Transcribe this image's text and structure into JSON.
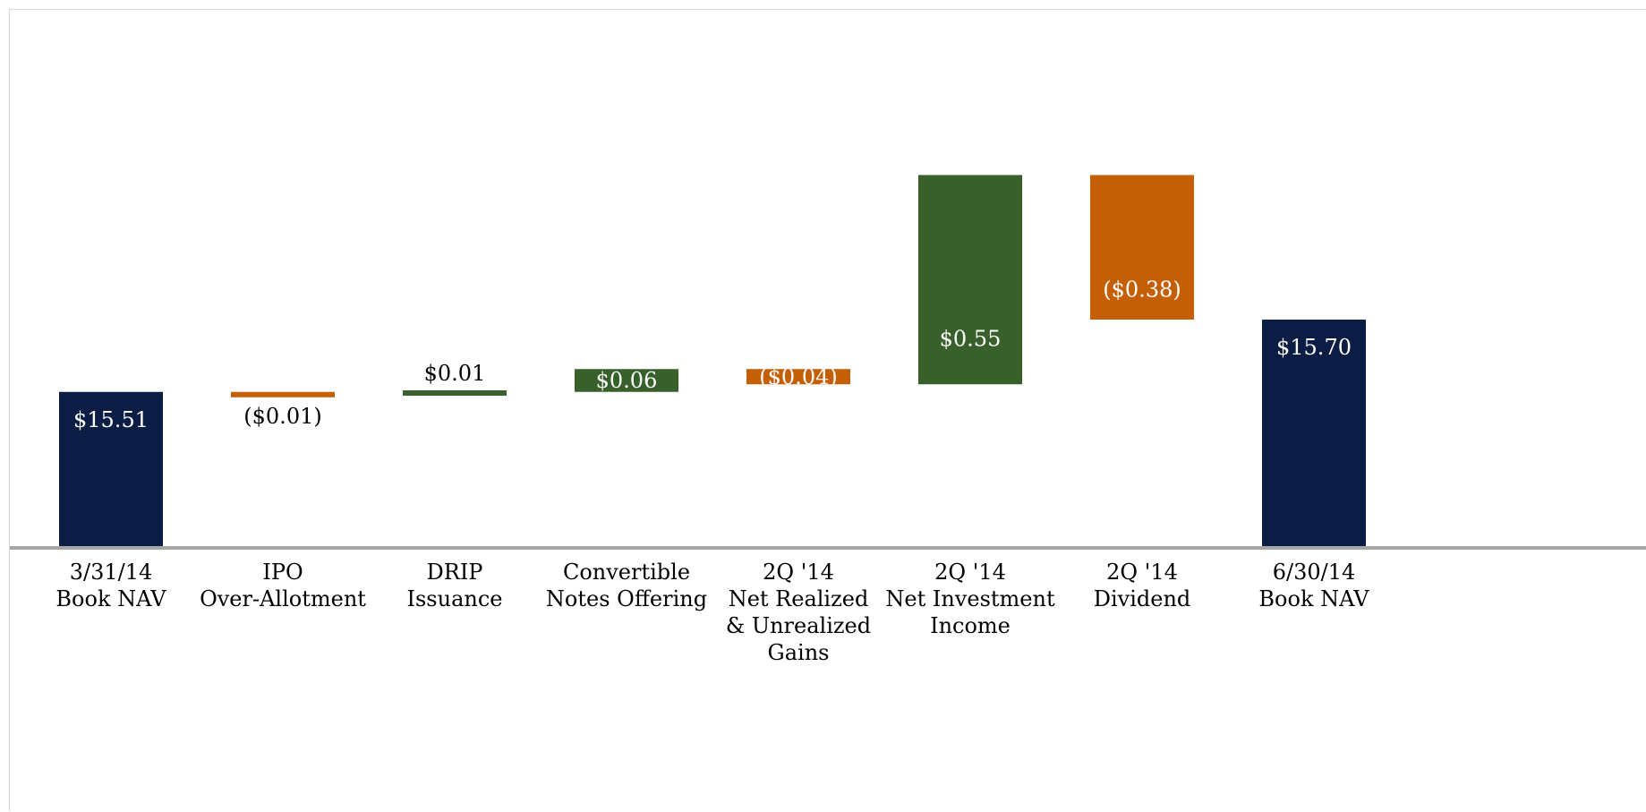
{
  "chart_data": {
    "type": "bar",
    "subtype": "waterfall",
    "categories": [
      [
        "3/31/14",
        "Book NAV"
      ],
      [
        "IPO",
        "Over-Allotment"
      ],
      [
        "DRIP",
        "Issuance"
      ],
      [
        "Convertible",
        "Notes Offering"
      ],
      [
        "2Q '14",
        "Net Realized",
        "& Unrealized",
        "Gains"
      ],
      [
        "2Q '14",
        "Net Investment",
        "Income"
      ],
      [
        "2Q '14",
        "Dividend"
      ],
      [
        "6/30/14",
        "Book NAV"
      ]
    ],
    "values": [
      15.51,
      -0.01,
      0.01,
      0.06,
      -0.04,
      0.55,
      -0.38,
      15.7
    ],
    "bar_kinds": [
      "total",
      "change",
      "change",
      "change",
      "change",
      "change",
      "change",
      "total"
    ],
    "labels": [
      "$15.51",
      "($0.01)",
      "$0.01",
      "$0.06",
      "($0.04)",
      "$0.55",
      "($0.38)",
      "$15.70"
    ],
    "label_positions": [
      "inside-top",
      "below",
      "above",
      "inside",
      "inside",
      "inside",
      "inside",
      "inside-top"
    ],
    "colors": {
      "total": "#0b1c45",
      "increase": "#38602a",
      "decrease": "#c55f05",
      "axis": "#a6a6a6"
    },
    "title": "",
    "xlabel": "",
    "ylabel": "",
    "grid": false,
    "legend": "none"
  }
}
